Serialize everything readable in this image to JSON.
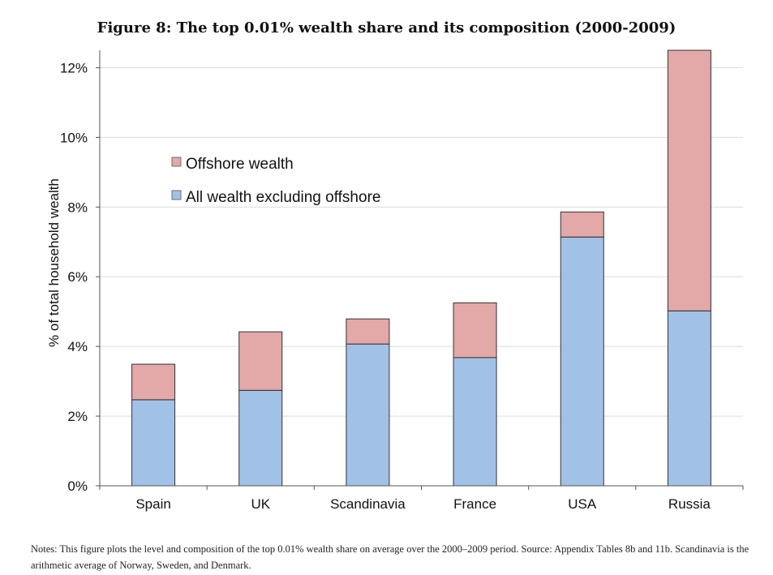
{
  "figure": {
    "title": "Figure 8: The top 0.01% wealth share and its composition (2000-2009)",
    "notes": "Notes: This figure plots the level and composition of the top 0.01% wealth share on average over the 2000–2009 period. Source: Appendix Tables 8b and 11b. Scandinavia is the arithmetic average of Norway, Sweden, and Denmark."
  },
  "chart_data": {
    "type": "bar",
    "stacked": true,
    "title": "Figure 8: The top 0.01% wealth share and its composition (2000-2009)",
    "xlabel": "",
    "ylabel": "% of total household wealth",
    "categories": [
      "Spain",
      "UK",
      "Scandinavia",
      "France",
      "USA",
      "Russia"
    ],
    "series": [
      {
        "name": "All wealth excluding offshore",
        "color": "#a2c1e6",
        "values": [
          2.47,
          2.74,
          4.07,
          3.68,
          7.14,
          5.02
        ]
      },
      {
        "name": "Offshore wealth",
        "color": "#e3a8a8",
        "values": [
          1.02,
          1.68,
          0.72,
          1.57,
          0.72,
          7.48
        ]
      }
    ],
    "ylim": [
      0,
      12.5
    ],
    "yticks": [
      0,
      2,
      4,
      6,
      8,
      10,
      12
    ],
    "ytick_labels": [
      "0%",
      "2%",
      "4%",
      "6%",
      "8%",
      "10%",
      "12%"
    ],
    "grid": true,
    "legend_position": "upper-left",
    "legend_order": [
      "Offshore wealth",
      "All wealth excluding offshore"
    ]
  }
}
